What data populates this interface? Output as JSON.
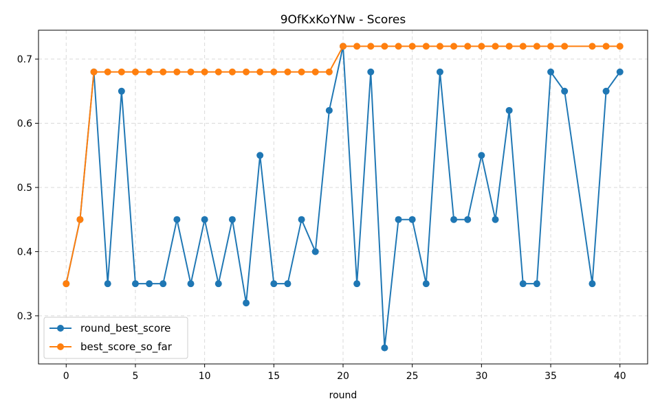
{
  "chart_data": {
    "type": "line",
    "title": "9OfKxKoYNw - Scores",
    "xlabel": "round",
    "ylabel": "",
    "xlim": [
      -2,
      42
    ],
    "ylim": [
      0.225,
      0.745
    ],
    "xticks": [
      0,
      5,
      10,
      15,
      20,
      25,
      30,
      35,
      40
    ],
    "yticks": [
      0.3,
      0.4,
      0.5,
      0.6,
      0.7
    ],
    "grid": true,
    "legend_position": "lower-left",
    "series": [
      {
        "name": "round_best_score",
        "color": "#1f77b4",
        "marker": "circle",
        "points": [
          [
            0,
            0.35
          ],
          [
            1,
            0.45
          ],
          [
            2,
            0.68
          ],
          [
            3,
            0.35
          ],
          [
            4,
            0.65
          ],
          [
            5,
            0.35
          ],
          [
            6,
            0.35
          ],
          [
            7,
            0.35
          ],
          [
            8,
            0.45
          ],
          [
            9,
            0.35
          ],
          [
            10,
            0.45
          ],
          [
            11,
            0.35
          ],
          [
            12,
            0.45
          ],
          [
            13,
            0.32
          ],
          [
            14,
            0.55
          ],
          [
            15,
            0.35
          ],
          [
            16,
            0.35
          ],
          [
            17,
            0.45
          ],
          [
            18,
            0.4
          ],
          [
            19,
            0.62
          ],
          [
            20,
            0.72
          ],
          [
            21,
            0.35
          ],
          [
            22,
            0.68
          ],
          [
            23,
            0.25
          ],
          [
            24,
            0.45
          ],
          [
            25,
            0.45
          ],
          [
            26,
            0.35
          ],
          [
            27,
            0.68
          ],
          [
            28,
            0.45
          ],
          [
            29,
            0.45
          ],
          [
            30,
            0.55
          ],
          [
            31,
            0.45
          ],
          [
            32,
            0.62
          ],
          [
            33,
            0.35
          ],
          [
            34,
            0.35
          ],
          [
            35,
            0.68
          ],
          [
            36,
            0.65
          ],
          [
            38,
            0.35
          ],
          [
            39,
            0.65
          ],
          [
            40,
            0.68
          ]
        ]
      },
      {
        "name": "best_score_so_far",
        "color": "#ff7f0e",
        "marker": "circle",
        "points": [
          [
            0,
            0.35
          ],
          [
            1,
            0.45
          ],
          [
            2,
            0.68
          ],
          [
            3,
            0.68
          ],
          [
            4,
            0.68
          ],
          [
            5,
            0.68
          ],
          [
            6,
            0.68
          ],
          [
            7,
            0.68
          ],
          [
            8,
            0.68
          ],
          [
            9,
            0.68
          ],
          [
            10,
            0.68
          ],
          [
            11,
            0.68
          ],
          [
            12,
            0.68
          ],
          [
            13,
            0.68
          ],
          [
            14,
            0.68
          ],
          [
            15,
            0.68
          ],
          [
            16,
            0.68
          ],
          [
            17,
            0.68
          ],
          [
            18,
            0.68
          ],
          [
            19,
            0.68
          ],
          [
            20,
            0.72
          ],
          [
            21,
            0.72
          ],
          [
            22,
            0.72
          ],
          [
            23,
            0.72
          ],
          [
            24,
            0.72
          ],
          [
            25,
            0.72
          ],
          [
            26,
            0.72
          ],
          [
            27,
            0.72
          ],
          [
            28,
            0.72
          ],
          [
            29,
            0.72
          ],
          [
            30,
            0.72
          ],
          [
            31,
            0.72
          ],
          [
            32,
            0.72
          ],
          [
            33,
            0.72
          ],
          [
            34,
            0.72
          ],
          [
            35,
            0.72
          ],
          [
            36,
            0.72
          ],
          [
            38,
            0.72
          ],
          [
            39,
            0.72
          ],
          [
            40,
            0.72
          ]
        ]
      }
    ]
  }
}
